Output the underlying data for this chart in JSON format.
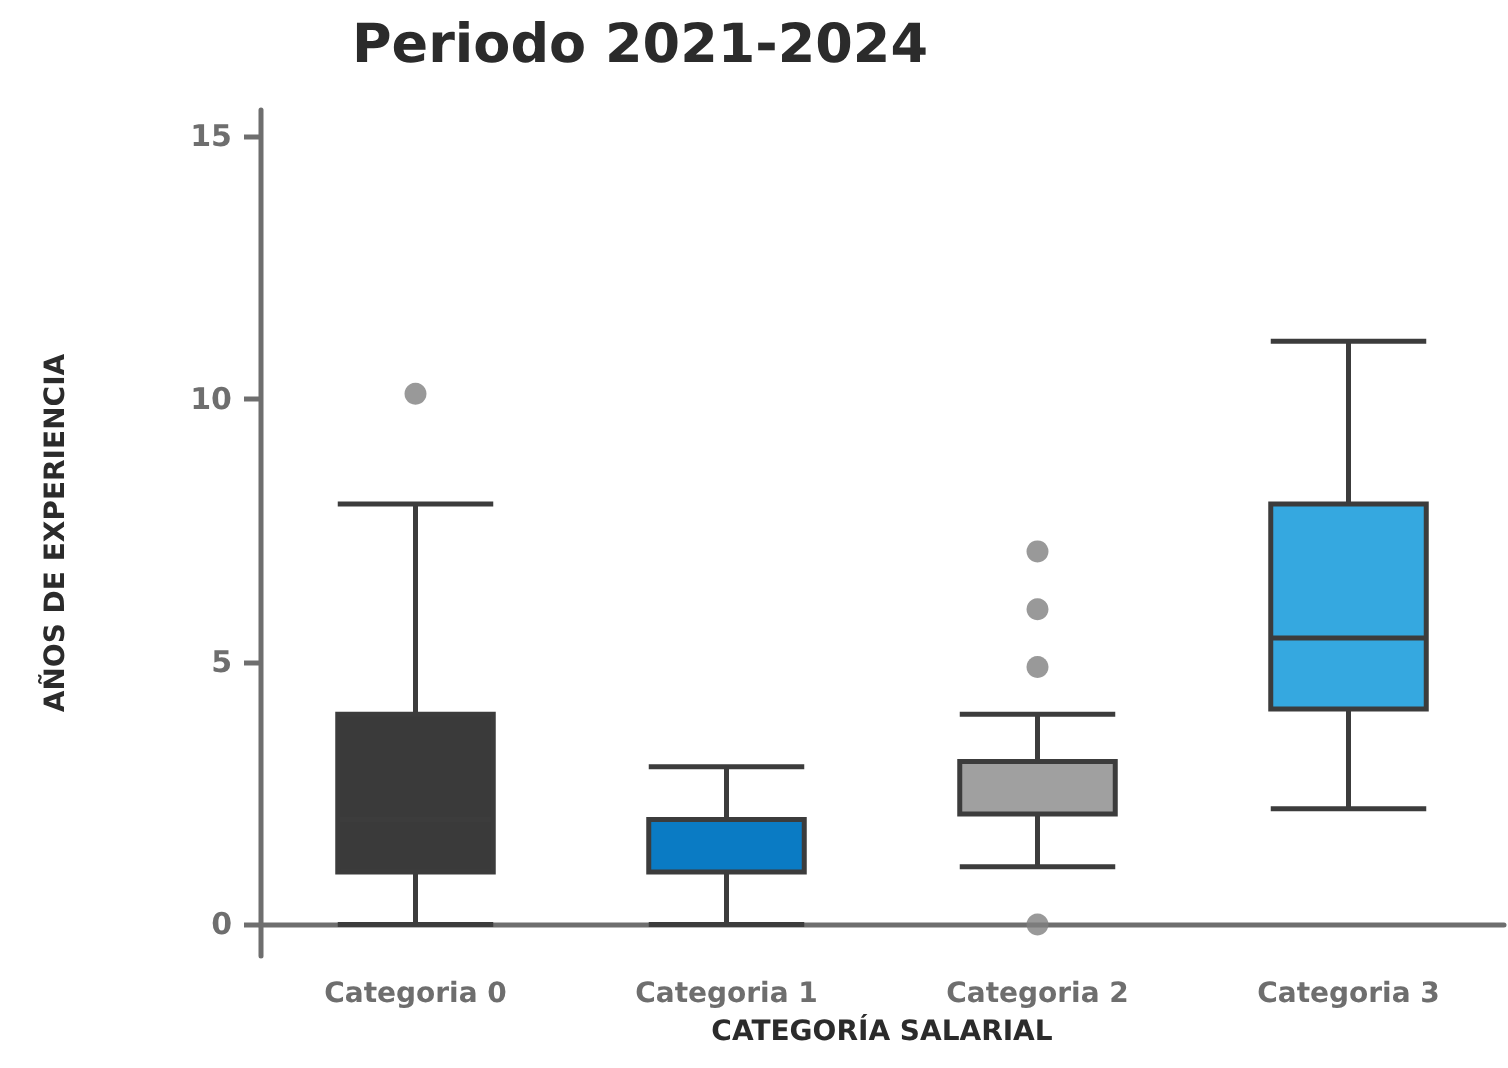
{
  "chart_data": {
    "type": "box",
    "title": "Periodo 2021-2024",
    "xlabel": "CATEGORÍA SALARIAL",
    "ylabel": "AÑOS DE EXPERIENCIA",
    "categories": [
      "Categoria 0",
      "Categoria 1",
      "Categoria 2",
      "Categoria 3"
    ],
    "colors": [
      "#3a3a3a",
      "#0a7bc4",
      "#a0a0a0",
      "#35a8e0"
    ],
    "boxes": [
      {
        "low": 0,
        "q1": 1,
        "median": 2,
        "q3": 4,
        "high": 8,
        "outliers": [
          10.1
        ]
      },
      {
        "low": 0,
        "q1": 1,
        "median": 2,
        "q3": 2,
        "high": 3
      },
      {
        "low": 1.1,
        "q1": 2.1,
        "median": 3.1,
        "q3": 3.1,
        "high": 4,
        "outliers": [
          0,
          4.9,
          6,
          7.1
        ]
      },
      {
        "low": 2.2,
        "q1": 4.1,
        "median": 5.45,
        "q3": 8,
        "high": 11.1
      }
    ],
    "ylim": [
      -0.6,
      15.5
    ],
    "yticks": [
      0,
      5,
      10,
      15
    ],
    "grid": false
  }
}
